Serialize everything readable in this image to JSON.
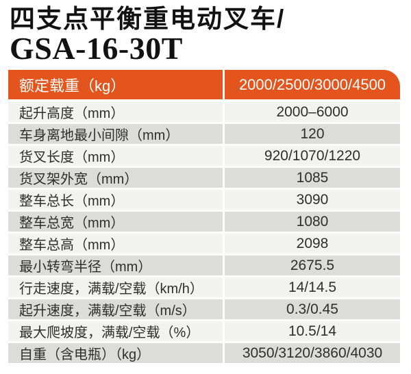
{
  "title": {
    "line1": "四支点平衡重电动叉车/",
    "line2": "GSA-16-30T"
  },
  "colors": {
    "accent_orange": "#e3551d",
    "row_light": "#f2f2f0",
    "row_gray": "#dcdcda",
    "header_text": "#ffffff",
    "body_text": "#2e2e2e",
    "title_text": "#121212"
  },
  "table": {
    "header": {
      "label": "额定载重（kg）",
      "value": "2000/2500/3000/4500"
    },
    "rows": [
      {
        "label": "起升高度（mm）",
        "value": "2000–6000"
      },
      {
        "label": "车身离地最小间隙（mm）",
        "value": "120"
      },
      {
        "label": "货叉长度（mm）",
        "value": "920/1070/1220"
      },
      {
        "label": "货叉架外宽（mm）",
        "value": "1085"
      },
      {
        "label": "整车总长（mm）",
        "value": "3090"
      },
      {
        "label": "整车总宽（mm）",
        "value": "1080"
      },
      {
        "label": "整车总高（mm）",
        "value": "2098"
      },
      {
        "label": "最小转弯半径（mm）",
        "value": "2675.5"
      },
      {
        "label": "行走速度，满载/空载（km/h）",
        "value": "14/14.5"
      },
      {
        "label": "起升速度，满载/空载（m/s）",
        "value": "0.3/0.45"
      },
      {
        "label": "最大爬坡度，满载/空载（%）",
        "value": "10.5/14"
      },
      {
        "label": "自重（含电瓶）（kg）",
        "value": "3050/3120/3860/4030"
      }
    ]
  }
}
